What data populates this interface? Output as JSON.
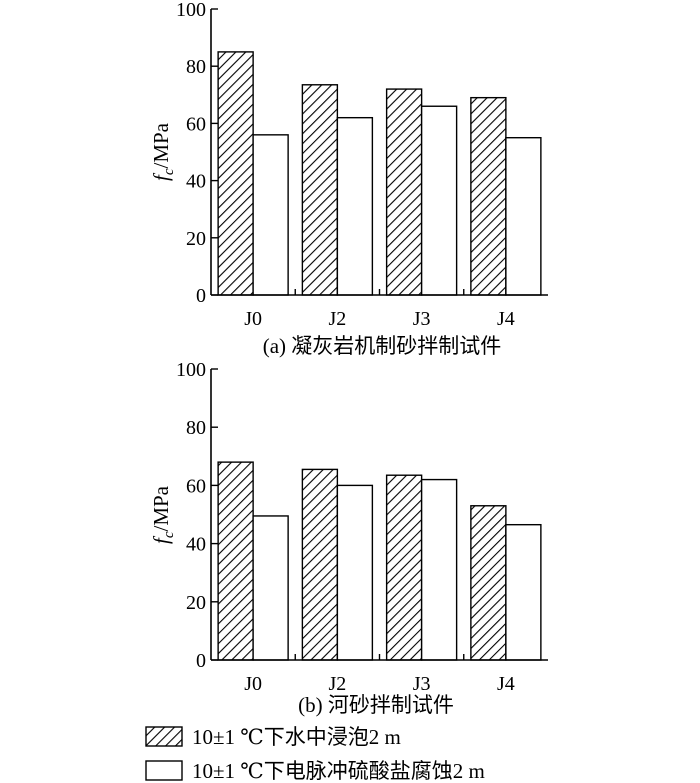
{
  "chart_data": [
    {
      "type": "bar",
      "categories": [
        "J0",
        "J2",
        "J3",
        "J4"
      ],
      "series": [
        {
          "values": [
            85,
            73.5,
            72,
            69
          ]
        },
        {
          "values": [
            56,
            62,
            66,
            55
          ]
        }
      ],
      "ylabel": "fc/MPa",
      "ylabel_main": "f",
      "ylabel_sub": "c",
      "ylabel_unit": "/MPa",
      "ylim": [
        0,
        100
      ],
      "yticks": [
        "0",
        "20",
        "40",
        "60",
        "80",
        "100"
      ],
      "caption": "(a) 凝灰岩机制砂拌制试件"
    },
    {
      "type": "bar",
      "categories": [
        "J0",
        "J2",
        "J3",
        "J4"
      ],
      "series": [
        {
          "values": [
            68,
            65.5,
            63.5,
            53
          ]
        },
        {
          "values": [
            49.5,
            60,
            62,
            46.5
          ]
        }
      ],
      "ylabel": "fc/MPa",
      "ylabel_main": "f",
      "ylabel_sub": "c",
      "ylabel_unit": "/MPa",
      "ylim": [
        0,
        100
      ],
      "yticks": [
        "0",
        "20",
        "40",
        "60",
        "80",
        "100"
      ],
      "caption": "(b) 河砂拌制试件"
    }
  ],
  "legend": [
    {
      "label": "10±1 ℃下水中浸泡2 m",
      "pattern": "hatch"
    },
    {
      "label": "10±1 ℃下电脉冲硫酸盐腐蚀2 m",
      "pattern": "open"
    }
  ],
  "colors": {
    "bar_stroke": "#000000",
    "open_fill": "#ffffff",
    "hatch_line": "#000000"
  }
}
